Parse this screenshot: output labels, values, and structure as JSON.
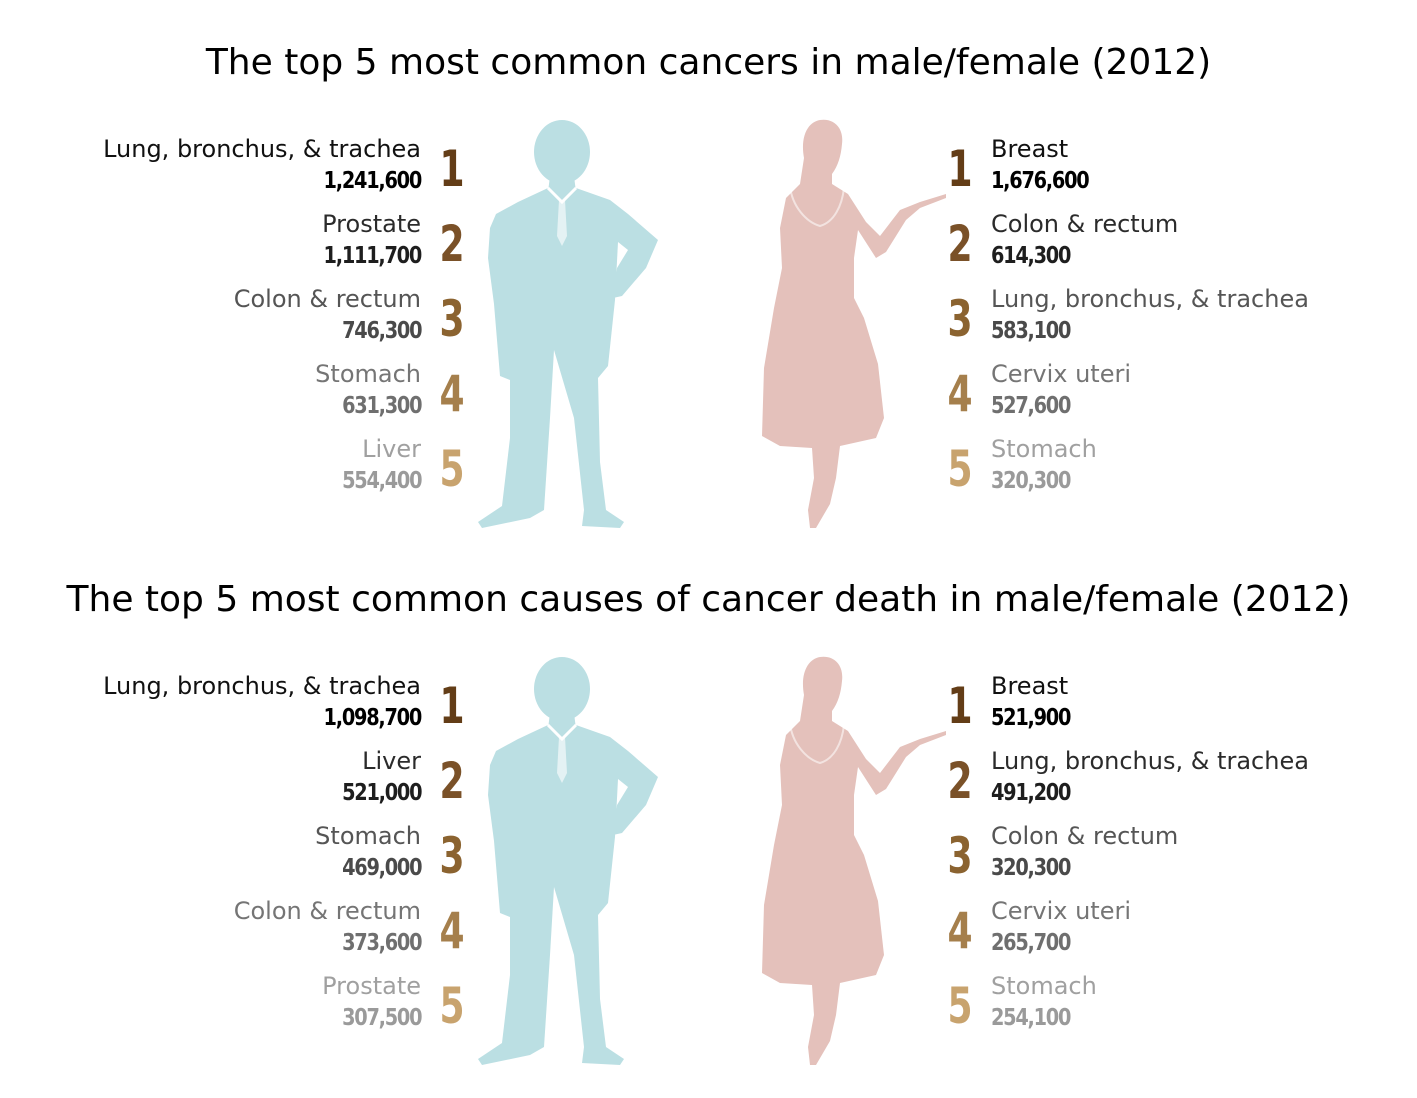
{
  "colors": {
    "male_silhouette": "#bbdfe3",
    "female_silhouette": "#e4c1bb",
    "rank_colors": [
      "#633d17",
      "#7a5128",
      "#8b6330",
      "#a57f4c",
      "#c8a36e"
    ]
  },
  "panels": [
    {
      "title": "The top 5 most common cancers in male/female (2012)",
      "male": [
        {
          "rank": "1",
          "name": "Lung, bronchus, & trachea",
          "value": "1,241,600"
        },
        {
          "rank": "2",
          "name": "Prostate",
          "value": "1,111,700"
        },
        {
          "rank": "3",
          "name": "Colon & rectum",
          "value": "746,300"
        },
        {
          "rank": "4",
          "name": "Stomach",
          "value": "631,300"
        },
        {
          "rank": "5",
          "name": "Liver",
          "value": "554,400"
        }
      ],
      "female": [
        {
          "rank": "1",
          "name": "Breast",
          "value": "1,676,600"
        },
        {
          "rank": "2",
          "name": "Colon & rectum",
          "value": "614,300"
        },
        {
          "rank": "3",
          "name": "Lung, bronchus, & trachea",
          "value": "583,100"
        },
        {
          "rank": "4",
          "name": "Cervix uteri",
          "value": "527,600"
        },
        {
          "rank": "5",
          "name": "Stomach",
          "value": "320,300"
        }
      ]
    },
    {
      "title": "The top 5 most common causes of cancer death in male/female (2012)",
      "male": [
        {
          "rank": "1",
          "name": "Lung, bronchus, & trachea",
          "value": "1,098,700"
        },
        {
          "rank": "2",
          "name": "Liver",
          "value": "521,000"
        },
        {
          "rank": "3",
          "name": "Stomach",
          "value": "469,000"
        },
        {
          "rank": "4",
          "name": "Colon & rectum",
          "value": "373,600"
        },
        {
          "rank": "5",
          "name": "Prostate",
          "value": "307,500"
        }
      ],
      "female": [
        {
          "rank": "1",
          "name": "Breast",
          "value": "521,900"
        },
        {
          "rank": "2",
          "name": "Lung, bronchus, & trachea",
          "value": "491,200"
        },
        {
          "rank": "3",
          "name": "Colon & rectum",
          "value": "320,300"
        },
        {
          "rank": "4",
          "name": "Cervix uteri",
          "value": "265,700"
        },
        {
          "rank": "5",
          "name": "Stomach",
          "value": "254,100"
        }
      ]
    }
  ]
}
